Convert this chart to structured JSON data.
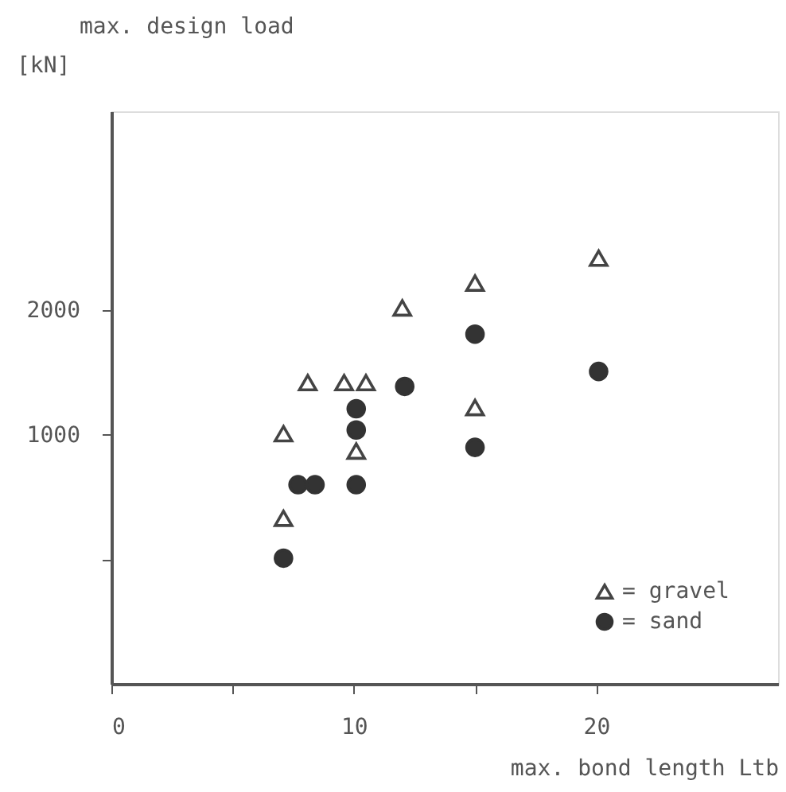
{
  "chart_data": {
    "type": "scatter",
    "title": "max. design load",
    "ylabel": "[kN]",
    "xlabel": "max. bond length Ltb",
    "xlim": [
      0,
      27.5
    ],
    "xticks": [
      0,
      {
        "value": 5,
        "label": null
      },
      10,
      {
        "value": 15,
        "label": null
      },
      20
    ],
    "ylim": [
      -1000,
      3600
    ],
    "yticks": [
      {
        "value": 0,
        "label": null
      },
      1000,
      2000
    ],
    "grid": false,
    "legend": "bottom right",
    "series": [
      {
        "name": "= gravel",
        "color": "#444444",
        "marker": "triangle",
        "x": [
          7.1,
          7.1,
          8.1,
          9.6,
          10.5,
          10.1,
          12.0,
          15.0,
          15.0,
          20.1
        ],
        "values": [
          1010,
          330,
          1420,
          1420,
          1420,
          870,
          2020,
          2220,
          1220,
          2420
        ]
      },
      {
        "name": "= sand",
        "color": "#333333",
        "marker": "circle",
        "x": [
          7.1,
          7.7,
          8.4,
          10.1,
          10.1,
          10.1,
          12.1,
          15.0,
          15.0,
          20.1
        ],
        "values": [
          10,
          600,
          600,
          1210,
          1040,
          600,
          1390,
          1810,
          900,
          1510
        ]
      }
    ]
  }
}
